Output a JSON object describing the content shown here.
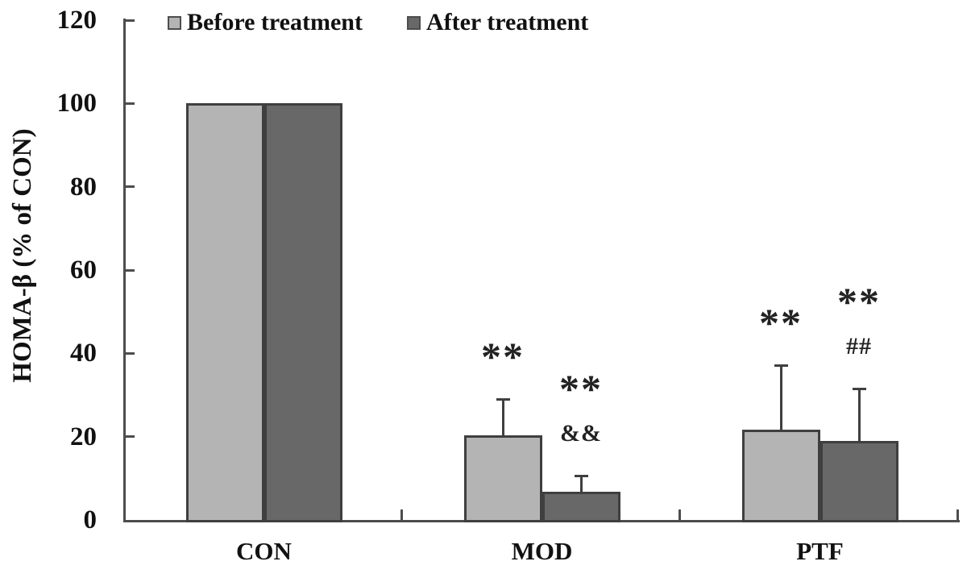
{
  "chart_data": {
    "type": "bar",
    "title": "",
    "xlabel": "",
    "ylabel": "HOMA-β (% of CON)",
    "ylim": [
      0,
      120
    ],
    "yticks": [
      0,
      20,
      40,
      60,
      80,
      100,
      120
    ],
    "grid": false,
    "legend_position": "top",
    "categories": [
      "CON",
      "MOD",
      "PTF"
    ],
    "series": [
      {
        "name": "Before treatment",
        "color": "#b4b4b4",
        "values": [
          100,
          20.3,
          21.7
        ],
        "errors_up": [
          0,
          8.7,
          15.4
        ],
        "annotations": [
          [],
          [
            "**"
          ],
          [
            "**"
          ]
        ]
      },
      {
        "name": "After treatment",
        "color": "#686868",
        "values": [
          100,
          6.8,
          19.0
        ],
        "errors_up": [
          0,
          3.8,
          12.5
        ],
        "annotations": [
          [],
          [
            "**",
            "&&"
          ],
          [
            "**",
            "##"
          ]
        ]
      }
    ],
    "bar_border_color": "#3f3f3f",
    "axis_color": "#4d4d4d"
  }
}
